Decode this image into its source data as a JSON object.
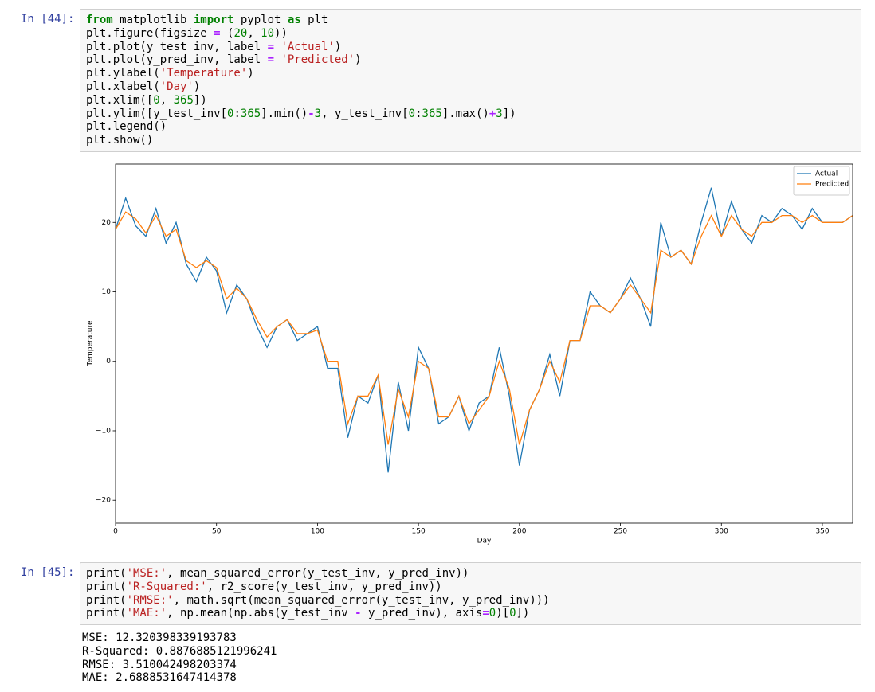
{
  "cells": [
    {
      "prompt": "In [44]:",
      "code": [
        [
          {
            "text": "from",
            "color": "#008000",
            "bold": true
          },
          {
            "text": " matplotlib "
          },
          {
            "text": "import",
            "color": "#008000",
            "bold": true
          },
          {
            "text": " pyplot "
          },
          {
            "text": "as",
            "color": "#008000",
            "bold": true
          },
          {
            "text": " plt"
          }
        ],
        [
          {
            "text": "plt.figure(figsize "
          },
          {
            "text": "=",
            "color": "#aa22ff",
            "bold": true
          },
          {
            "text": " ("
          },
          {
            "text": "20",
            "color": "#008000"
          },
          {
            "text": ", "
          },
          {
            "text": "10",
            "color": "#008000"
          },
          {
            "text": "))"
          }
        ],
        [
          {
            "text": "plt.plot(y_test_inv, label "
          },
          {
            "text": "=",
            "color": "#aa22ff",
            "bold": true
          },
          {
            "text": " "
          },
          {
            "text": "'Actual'",
            "color": "#ba2121"
          },
          {
            "text": ")"
          }
        ],
        [
          {
            "text": "plt.plot(y_pred_inv, label "
          },
          {
            "text": "=",
            "color": "#aa22ff",
            "bold": true
          },
          {
            "text": " "
          },
          {
            "text": "'Predicted'",
            "color": "#ba2121"
          },
          {
            "text": ")"
          }
        ],
        [
          {
            "text": "plt.ylabel("
          },
          {
            "text": "'Temperature'",
            "color": "#ba2121"
          },
          {
            "text": ")"
          }
        ],
        [
          {
            "text": "plt.xlabel("
          },
          {
            "text": "'Day'",
            "color": "#ba2121"
          },
          {
            "text": ")"
          }
        ],
        [
          {
            "text": "plt.xlim(["
          },
          {
            "text": "0",
            "color": "#008000"
          },
          {
            "text": ", "
          },
          {
            "text": "365",
            "color": "#008000"
          },
          {
            "text": "])"
          }
        ],
        [
          {
            "text": "plt.ylim([y_test_inv["
          },
          {
            "text": "0",
            "color": "#008000"
          },
          {
            "text": ":"
          },
          {
            "text": "365",
            "color": "#008000"
          },
          {
            "text": "].min()"
          },
          {
            "text": "-",
            "color": "#aa22ff",
            "bold": true
          },
          {
            "text": "3",
            "color": "#008000"
          },
          {
            "text": ", y_test_inv["
          },
          {
            "text": "0",
            "color": "#008000"
          },
          {
            "text": ":"
          },
          {
            "text": "365",
            "color": "#008000"
          },
          {
            "text": "].max()"
          },
          {
            "text": "+",
            "color": "#aa22ff",
            "bold": true
          },
          {
            "text": "3",
            "color": "#008000"
          },
          {
            "text": "])"
          }
        ],
        [
          {
            "text": "plt.legend()"
          }
        ],
        [
          {
            "text": "plt.show()"
          }
        ]
      ]
    },
    {
      "prompt": "In [45]:",
      "code": [
        [
          {
            "text": "print("
          },
          {
            "text": "'MSE:'",
            "color": "#ba2121"
          },
          {
            "text": ", mean_squared_error(y_test_inv, y_pred_inv))"
          }
        ],
        [
          {
            "text": "print("
          },
          {
            "text": "'R-Squared:'",
            "color": "#ba2121"
          },
          {
            "text": ", r2_score(y_test_inv, y_pred_inv))"
          }
        ],
        [
          {
            "text": "print("
          },
          {
            "text": "'RMSE:'",
            "color": "#ba2121"
          },
          {
            "text": ", math.sqrt(mean_squared_error(y_test_inv, y_pred_inv)))"
          }
        ],
        [
          {
            "text": "print("
          },
          {
            "text": "'MAE:'",
            "color": "#ba2121"
          },
          {
            "text": ", np.mean(np.abs(y_test_inv "
          },
          {
            "text": "-",
            "color": "#aa22ff",
            "bold": true
          },
          {
            "text": " y_pred_inv), axis"
          },
          {
            "text": "=",
            "color": "#aa22ff",
            "bold": true
          },
          {
            "text": "0",
            "color": "#008000"
          },
          {
            "text": ")["
          },
          {
            "text": "0",
            "color": "#008000"
          },
          {
            "text": "])"
          }
        ]
      ],
      "output": [
        "MSE: 12.320398339193783",
        "R-Squared: 0.8876885121996241",
        "RMSE: 3.510042498203374",
        "MAE: 2.6888531647414378"
      ]
    }
  ],
  "chart_data": {
    "type": "line",
    "xlabel": "Day",
    "ylabel": "Temperature",
    "x": [
      0,
      5,
      10,
      15,
      20,
      25,
      30,
      35,
      40,
      45,
      50,
      55,
      60,
      65,
      70,
      75,
      80,
      85,
      90,
      95,
      100,
      105,
      110,
      115,
      120,
      125,
      130,
      135,
      140,
      145,
      150,
      155,
      160,
      165,
      170,
      175,
      180,
      185,
      190,
      195,
      200,
      205,
      210,
      215,
      220,
      225,
      230,
      235,
      240,
      245,
      250,
      255,
      260,
      265,
      270,
      275,
      280,
      285,
      290,
      295,
      300,
      305,
      310,
      315,
      320,
      325,
      330,
      335,
      340,
      345,
      350,
      355,
      360,
      365
    ],
    "series": [
      {
        "name": "Actual",
        "color": "#1f77b4",
        "values": [
          19,
          23.5,
          19.5,
          18,
          22,
          17,
          20,
          14,
          11.5,
          15,
          13,
          7,
          11,
          9,
          5,
          2,
          5,
          6,
          3,
          4,
          5,
          -1,
          -1,
          -11,
          -5,
          -6,
          -2,
          -16,
          -3,
          -10,
          2,
          -1,
          -9,
          -8,
          -5,
          -10,
          -6,
          -5,
          2,
          -5,
          -15,
          -7,
          -4,
          1,
          -5,
          3,
          3,
          10,
          8,
          7,
          9,
          12,
          9,
          5,
          20,
          15,
          16,
          14,
          20,
          25,
          18,
          23,
          19,
          17,
          21,
          20,
          22,
          21,
          19,
          22,
          20,
          20,
          20,
          21
        ]
      },
      {
        "name": "Predicted",
        "color": "#ff7f0e",
        "values": [
          19,
          21.5,
          20.5,
          18.5,
          21,
          18,
          19,
          14.5,
          13.5,
          14.5,
          13.5,
          9,
          10.5,
          9,
          6,
          3.5,
          5,
          6,
          4,
          4,
          4.5,
          0,
          0,
          -9,
          -5,
          -5,
          -2,
          -12,
          -4,
          -8,
          0,
          -1,
          -8,
          -8,
          -5,
          -9,
          -7,
          -5,
          0,
          -4,
          -12,
          -7,
          -4,
          0,
          -3,
          3,
          3,
          8,
          8,
          7,
          9,
          11,
          9,
          7,
          16,
          15,
          16,
          14,
          18,
          21,
          18,
          21,
          19,
          18,
          20,
          20,
          21,
          21,
          20,
          21,
          20,
          20,
          20,
          21
        ]
      }
    ],
    "xlim": [
      0,
      365
    ],
    "ylim": [
      -23.3,
      28.4
    ],
    "xticks": [
      0,
      50,
      100,
      150,
      200,
      250,
      300,
      350
    ],
    "yticks": [
      {
        "value": -20,
        "label": "−20"
      },
      {
        "value": -10,
        "label": "−10"
      },
      0,
      10,
      20
    ],
    "legend": "upper right"
  }
}
